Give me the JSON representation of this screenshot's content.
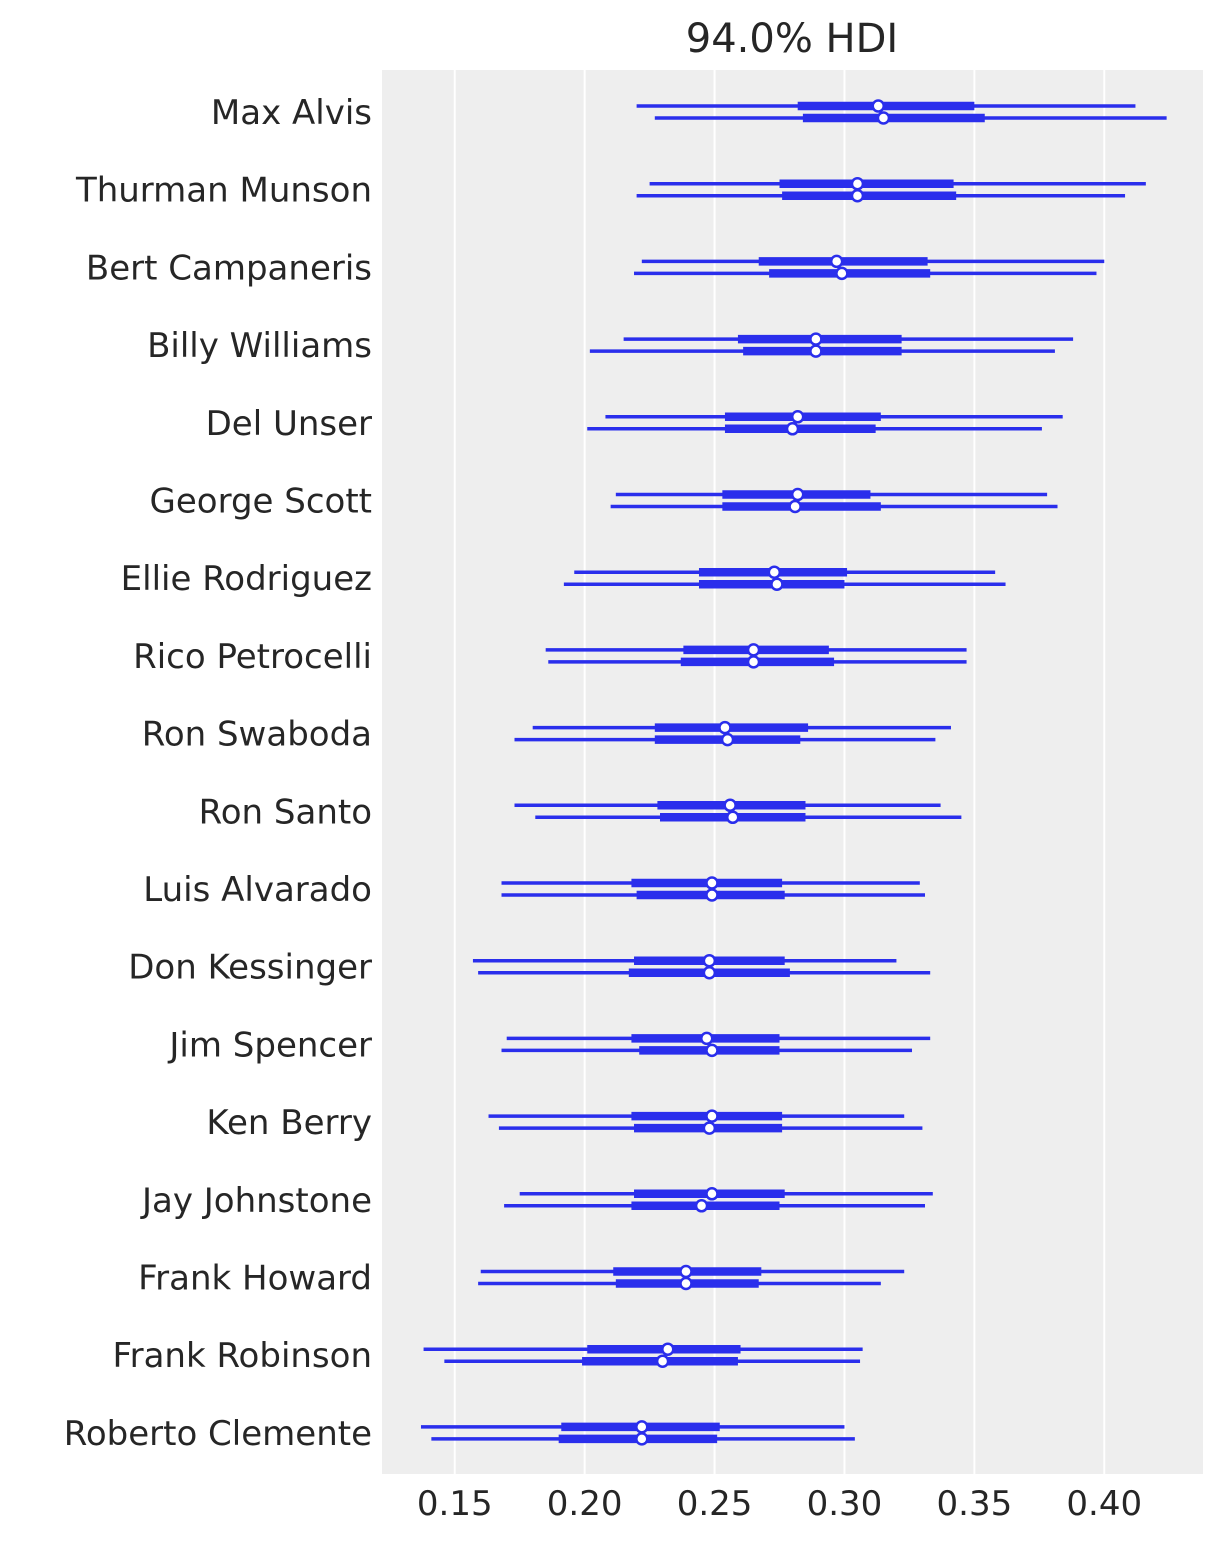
{
  "chart_data": {
    "type": "forest",
    "title": "94.0% HDI",
    "xlim": [
      0.122,
      0.438
    ],
    "xticks": [
      0.15,
      0.2,
      0.25,
      0.3,
      0.35,
      0.4
    ],
    "xtick_labels": [
      "0.15",
      "0.20",
      "0.25",
      "0.30",
      "0.35",
      "0.40"
    ],
    "grid": "vertical",
    "series_color": "#2a2eec",
    "background": "#eeeeee",
    "rows": [
      {
        "label": "Max Alvis",
        "chains": [
          {
            "hdi": [
              0.22,
              0.412
            ],
            "iqr": [
              0.282,
              0.35
            ],
            "median": 0.313
          },
          {
            "hdi": [
              0.227,
              0.424
            ],
            "iqr": [
              0.284,
              0.354
            ],
            "median": 0.315
          }
        ]
      },
      {
        "label": "Thurman Munson",
        "chains": [
          {
            "hdi": [
              0.225,
              0.416
            ],
            "iqr": [
              0.275,
              0.342
            ],
            "median": 0.305
          },
          {
            "hdi": [
              0.22,
              0.408
            ],
            "iqr": [
              0.276,
              0.343
            ],
            "median": 0.305
          }
        ]
      },
      {
        "label": "Bert Campaneris",
        "chains": [
          {
            "hdi": [
              0.222,
              0.4
            ],
            "iqr": [
              0.267,
              0.332
            ],
            "median": 0.297
          },
          {
            "hdi": [
              0.219,
              0.397
            ],
            "iqr": [
              0.271,
              0.333
            ],
            "median": 0.299
          }
        ]
      },
      {
        "label": "Billy Williams",
        "chains": [
          {
            "hdi": [
              0.215,
              0.388
            ],
            "iqr": [
              0.259,
              0.322
            ],
            "median": 0.289
          },
          {
            "hdi": [
              0.202,
              0.381
            ],
            "iqr": [
              0.261,
              0.322
            ],
            "median": 0.289
          }
        ]
      },
      {
        "label": "Del Unser",
        "chains": [
          {
            "hdi": [
              0.208,
              0.384
            ],
            "iqr": [
              0.254,
              0.314
            ],
            "median": 0.282
          },
          {
            "hdi": [
              0.201,
              0.376
            ],
            "iqr": [
              0.254,
              0.312
            ],
            "median": 0.28
          }
        ]
      },
      {
        "label": "George Scott",
        "chains": [
          {
            "hdi": [
              0.212,
              0.378
            ],
            "iqr": [
              0.253,
              0.31
            ],
            "median": 0.282
          },
          {
            "hdi": [
              0.21,
              0.382
            ],
            "iqr": [
              0.253,
              0.314
            ],
            "median": 0.281
          }
        ]
      },
      {
        "label": "Ellie Rodriguez",
        "chains": [
          {
            "hdi": [
              0.196,
              0.358
            ],
            "iqr": [
              0.244,
              0.301
            ],
            "median": 0.273
          },
          {
            "hdi": [
              0.192,
              0.362
            ],
            "iqr": [
              0.244,
              0.3
            ],
            "median": 0.274
          }
        ]
      },
      {
        "label": "Rico Petrocelli",
        "chains": [
          {
            "hdi": [
              0.185,
              0.347
            ],
            "iqr": [
              0.238,
              0.294
            ],
            "median": 0.265
          },
          {
            "hdi": [
              0.186,
              0.347
            ],
            "iqr": [
              0.237,
              0.296
            ],
            "median": 0.265
          }
        ]
      },
      {
        "label": "Ron Swaboda",
        "chains": [
          {
            "hdi": [
              0.18,
              0.341
            ],
            "iqr": [
              0.227,
              0.286
            ],
            "median": 0.254
          },
          {
            "hdi": [
              0.173,
              0.335
            ],
            "iqr": [
              0.227,
              0.283
            ],
            "median": 0.255
          }
        ]
      },
      {
        "label": "Ron Santo",
        "chains": [
          {
            "hdi": [
              0.173,
              0.337
            ],
            "iqr": [
              0.228,
              0.285
            ],
            "median": 0.256
          },
          {
            "hdi": [
              0.181,
              0.345
            ],
            "iqr": [
              0.229,
              0.285
            ],
            "median": 0.257
          }
        ]
      },
      {
        "label": "Luis Alvarado",
        "chains": [
          {
            "hdi": [
              0.168,
              0.329
            ],
            "iqr": [
              0.218,
              0.276
            ],
            "median": 0.249
          },
          {
            "hdi": [
              0.168,
              0.331
            ],
            "iqr": [
              0.22,
              0.277
            ],
            "median": 0.249
          }
        ]
      },
      {
        "label": "Don Kessinger",
        "chains": [
          {
            "hdi": [
              0.157,
              0.32
            ],
            "iqr": [
              0.219,
              0.277
            ],
            "median": 0.248
          },
          {
            "hdi": [
              0.159,
              0.333
            ],
            "iqr": [
              0.217,
              0.279
            ],
            "median": 0.248
          }
        ]
      },
      {
        "label": "Jim Spencer",
        "chains": [
          {
            "hdi": [
              0.17,
              0.333
            ],
            "iqr": [
              0.218,
              0.275
            ],
            "median": 0.247
          },
          {
            "hdi": [
              0.168,
              0.326
            ],
            "iqr": [
              0.221,
              0.275
            ],
            "median": 0.249
          }
        ]
      },
      {
        "label": "Ken Berry",
        "chains": [
          {
            "hdi": [
              0.163,
              0.323
            ],
            "iqr": [
              0.218,
              0.276
            ],
            "median": 0.249
          },
          {
            "hdi": [
              0.167,
              0.33
            ],
            "iqr": [
              0.219,
              0.276
            ],
            "median": 0.248
          }
        ]
      },
      {
        "label": "Jay Johnstone",
        "chains": [
          {
            "hdi": [
              0.175,
              0.334
            ],
            "iqr": [
              0.219,
              0.277
            ],
            "median": 0.249
          },
          {
            "hdi": [
              0.169,
              0.331
            ],
            "iqr": [
              0.218,
              0.275
            ],
            "median": 0.245
          }
        ]
      },
      {
        "label": "Frank Howard",
        "chains": [
          {
            "hdi": [
              0.16,
              0.323
            ],
            "iqr": [
              0.211,
              0.268
            ],
            "median": 0.239
          },
          {
            "hdi": [
              0.159,
              0.314
            ],
            "iqr": [
              0.212,
              0.267
            ],
            "median": 0.239
          }
        ]
      },
      {
        "label": "Frank Robinson",
        "chains": [
          {
            "hdi": [
              0.138,
              0.307
            ],
            "iqr": [
              0.201,
              0.26
            ],
            "median": 0.232
          },
          {
            "hdi": [
              0.146,
              0.306
            ],
            "iqr": [
              0.199,
              0.259
            ],
            "median": 0.23
          }
        ]
      },
      {
        "label": "Roberto Clemente",
        "chains": [
          {
            "hdi": [
              0.137,
              0.3
            ],
            "iqr": [
              0.191,
              0.252
            ],
            "median": 0.222
          },
          {
            "hdi": [
              0.141,
              0.304
            ],
            "iqr": [
              0.19,
              0.251
            ],
            "median": 0.222
          }
        ]
      }
    ]
  }
}
